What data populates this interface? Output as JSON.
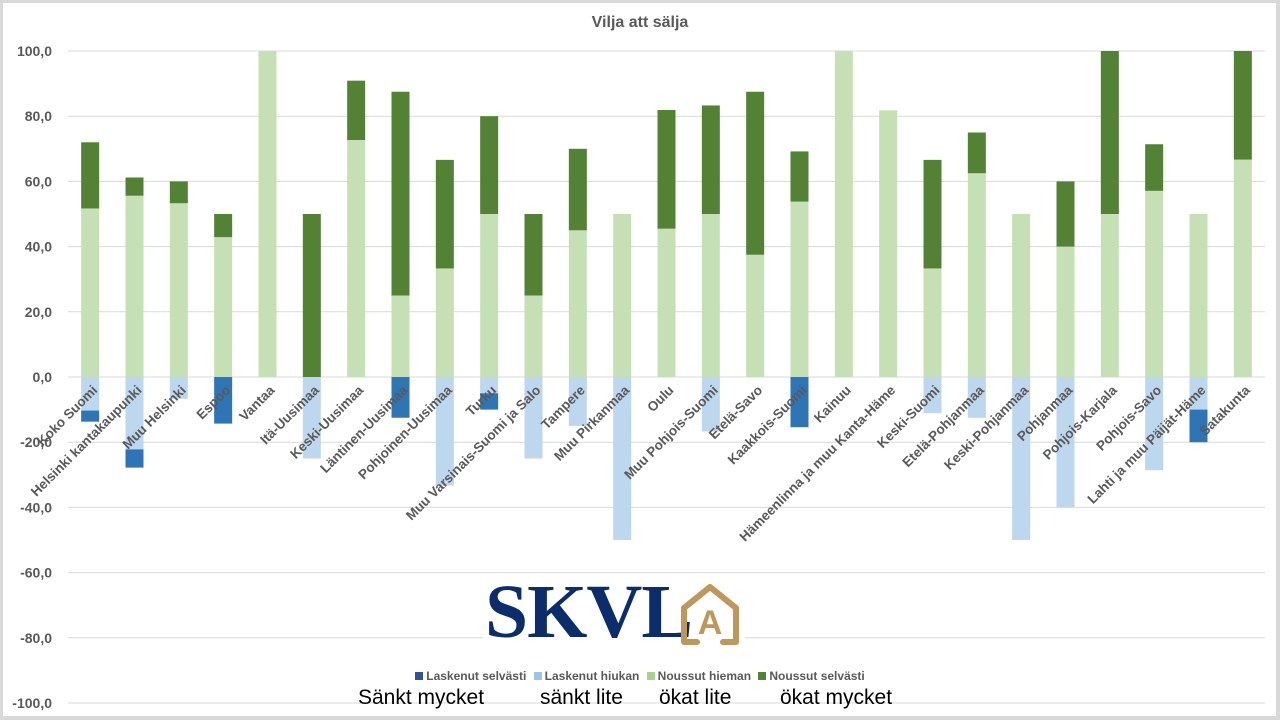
{
  "chart_data": {
    "type": "bar",
    "stacked": true,
    "title": "Vilja att sälja",
    "xlabel": "",
    "ylabel": "",
    "ylim": [
      -100,
      100
    ],
    "yticks": [
      100,
      80,
      60,
      40,
      20,
      0,
      -20,
      -40,
      -60,
      -80,
      -100
    ],
    "ytick_labels": [
      "100,0",
      "80,0",
      "60,0",
      "40,0",
      "20,0",
      "0,0",
      "-20,0",
      "-40,0",
      "-60,0",
      "-80,0",
      "-100,0"
    ],
    "grid": true,
    "legend_position": "bottom",
    "categories": [
      "Koko Suomi",
      "Helsinki kantakaupunki",
      "Muu Helsinki",
      "Espoo",
      "Vantaa",
      "Itä-Uusimaa",
      "Keski-Uusimaa",
      "Läntinen-Uusimaa",
      "Pohjoinen-Uusimaa",
      "Turku",
      "Muu Varsinais-Suomi ja Salo",
      "Tampere",
      "Muu Pirkanmaa",
      "Oulu",
      "Muu Pohjois-Suomi",
      "Etelä-Savo",
      "Kaakkois-Suomi",
      "Kainuu",
      "Hämeenlinna ja muu Kanta-Häme",
      "Keski-Suomi",
      "Etelä-Pohjanmaa",
      "Keski-Pohjanmaa",
      "Pohjanmaa",
      "Pohjois-Karjala",
      "Pohjois-Savo",
      "Lahti ja muu Päijät-Häme",
      "Satakunta"
    ],
    "series": [
      {
        "name": "Laskenut selvästi",
        "color": "#2e75b6",
        "values": [
          -3.4,
          -5.6,
          0,
          -14.3,
          0,
          0,
          0,
          -12.5,
          0,
          -5.0,
          0,
          0,
          0,
          0,
          0,
          0,
          -15.4,
          0,
          0,
          0,
          0,
          0,
          0,
          0,
          0,
          -10.0,
          0
        ]
      },
      {
        "name": "Laskenut hiukan",
        "color": "#bdd7ee",
        "values": [
          -10.3,
          -22.2,
          -6.7,
          0,
          0,
          -25.0,
          0,
          0,
          -33.3,
          -5.0,
          -25.0,
          -15.0,
          -50.0,
          0,
          -16.7,
          0,
          0,
          0,
          0,
          -11.1,
          -12.5,
          -50.0,
          -40.0,
          0,
          -28.6,
          -10.0,
          0
        ]
      },
      {
        "name": "Noussut hieman",
        "color": "#c5e0b4",
        "values": [
          51.7,
          55.6,
          53.3,
          42.9,
          100.0,
          0,
          72.7,
          25.0,
          33.3,
          50.0,
          25.0,
          45.0,
          50.0,
          45.5,
          50.0,
          37.5,
          53.8,
          100.0,
          81.8,
          33.3,
          62.5,
          50.0,
          40.0,
          50.0,
          57.1,
          50.0,
          66.7
        ]
      },
      {
        "name": "Noussut selvästi",
        "color": "#548235",
        "values": [
          20.3,
          5.6,
          6.7,
          7.1,
          0,
          50.0,
          18.2,
          62.5,
          33.3,
          30.0,
          25.0,
          25.0,
          0,
          36.4,
          33.3,
          50.0,
          15.4,
          0,
          0,
          33.3,
          12.5,
          0,
          20.0,
          50.0,
          14.3,
          0,
          33.3
        ]
      }
    ],
    "annotations": [
      {
        "text": "Sänkt mycket",
        "refers_to": "Laskenut selvästi"
      },
      {
        "text": "sänkt lite",
        "refers_to": "Laskenut hiukan"
      },
      {
        "text": "ökat lite",
        "refers_to": "Noussut hieman"
      },
      {
        "text": "ökat mycket",
        "refers_to": "Noussut selvästi"
      }
    ]
  },
  "logo": {
    "text": "SKVL",
    "badge_letter": "A",
    "text_color": "#0b2d6b",
    "badge_color": "#c0975a"
  },
  "colors": {
    "gridline": "#d9d9d9",
    "axis_text": "#595959",
    "frame": "#d9d9d9"
  }
}
